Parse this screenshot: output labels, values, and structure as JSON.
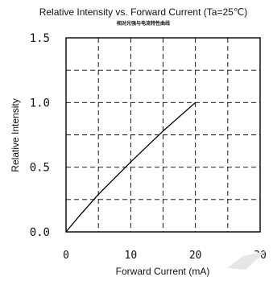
{
  "chart_data": {
    "type": "line",
    "title": "Relative Intensity vs. Forward Current (Ta=25℃)",
    "subtitle": "相对光强与电流特性曲线",
    "xlabel": "Forward Current (mA)",
    "ylabel": "Relative Intensity",
    "xlim": [
      0,
      30
    ],
    "ylim": [
      0,
      1.5
    ],
    "x_ticks": [
      "0",
      "10",
      "20",
      "30"
    ],
    "y_ticks": [
      "0.0",
      "0.5",
      "1.0",
      "1.5"
    ],
    "grid": true,
    "series": [
      {
        "x": [
          0,
          2,
          5,
          10,
          15,
          20
        ],
        "y": [
          0,
          0.12,
          0.29,
          0.54,
          0.78,
          1.0
        ]
      }
    ],
    "watermark": "╱"
  }
}
